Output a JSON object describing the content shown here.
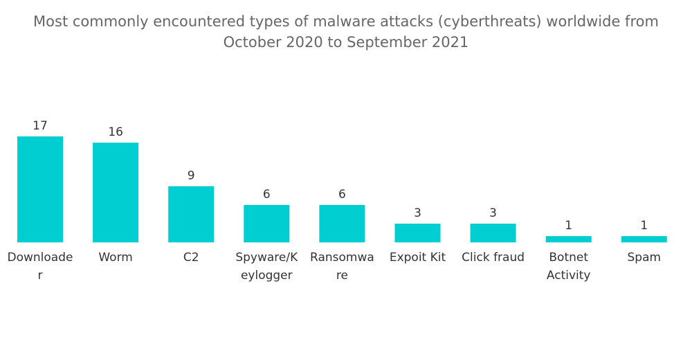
{
  "chart_data": {
    "type": "bar",
    "title_lines": [
      "Most commonly encountered types of malware attacks (cyberthreats) worldwide from",
      "October 2020 to September 2021"
    ],
    "categories": [
      [
        "Downloade",
        "r"
      ],
      [
        "Worm"
      ],
      [
        "C2"
      ],
      [
        "Spyware/K",
        "eylogger"
      ],
      [
        "Ransomwa",
        "re"
      ],
      [
        "Expoit Kit"
      ],
      [
        "Click fraud"
      ],
      [
        "Botnet",
        "Activity"
      ],
      [
        "Spam"
      ]
    ],
    "values": [
      17,
      16,
      9,
      6,
      6,
      3,
      3,
      1,
      1
    ],
    "xlabel": "",
    "ylabel": "",
    "ylim": [
      0,
      17
    ],
    "grid": false,
    "legend": "none",
    "bar_color": "#00ced1"
  }
}
